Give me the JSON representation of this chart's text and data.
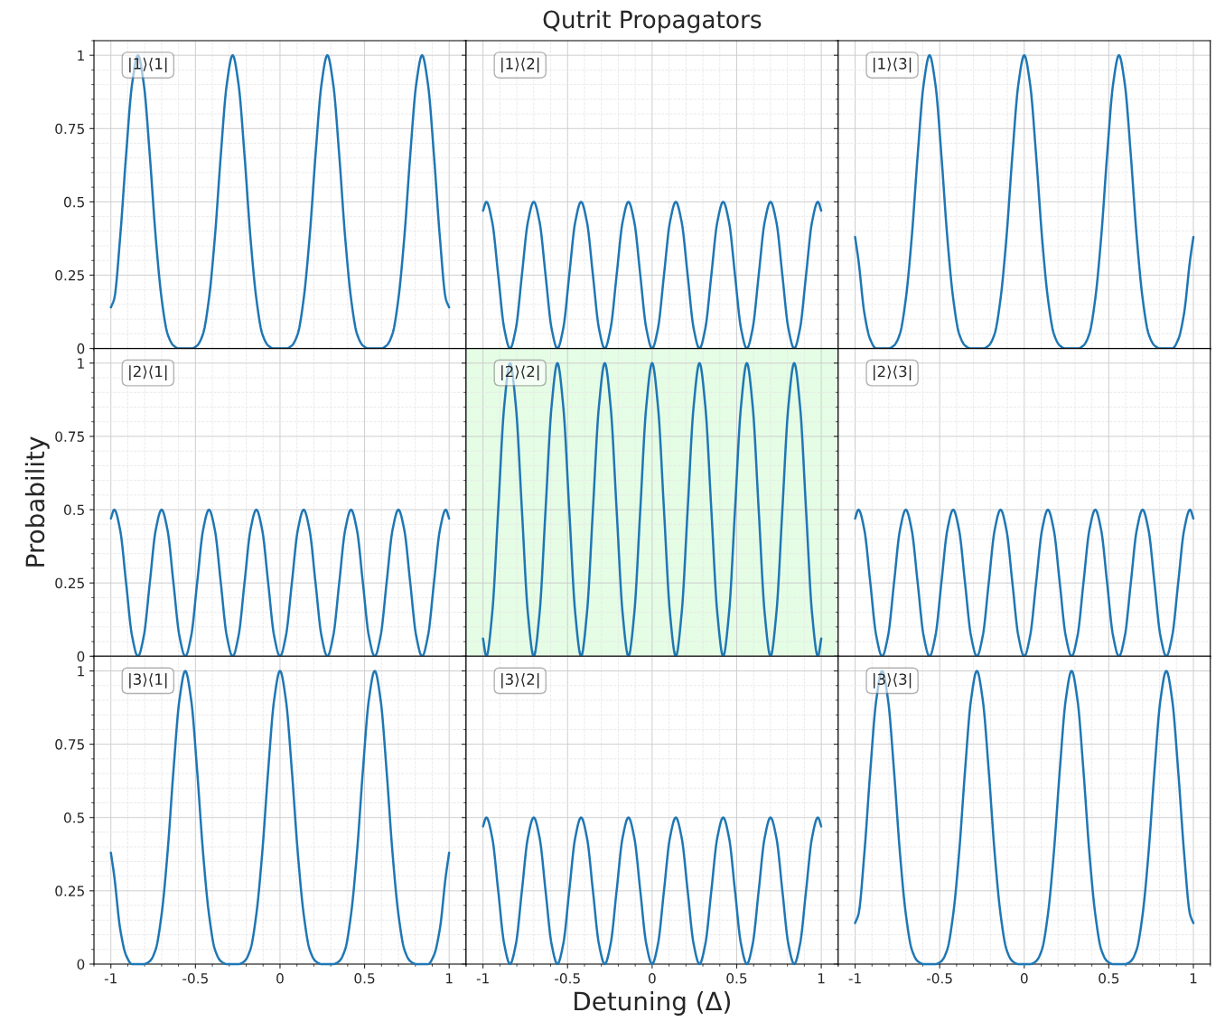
{
  "chart_data": [
    {
      "type": "line",
      "annotations": [
        "|1⟩⟨1|"
      ],
      "xlim": [
        -1.1,
        1.1
      ],
      "ylim": [
        0,
        1.05
      ],
      "xticks": [
        -1,
        -0.5,
        0,
        0.5,
        1
      ],
      "yticks": [
        0,
        0.25,
        0.5,
        0.75,
        1
      ],
      "grid": true,
      "tick_labels": "y",
      "x": [
        -1,
        -0.98,
        -0.945,
        -0.91,
        -0.875,
        -0.84,
        -0.805,
        -0.77,
        -0.735,
        -0.7,
        -0.665,
        -0.63,
        -0.595,
        -0.56,
        -0.525,
        -0.49,
        -0.455,
        -0.42,
        -0.385,
        -0.35,
        -0.315,
        -0.28,
        -0.245,
        -0.21,
        -0.175,
        -0.14,
        -0.105,
        -0.07,
        -0.035,
        0,
        0.035,
        0.07,
        0.105,
        0.14,
        0.175,
        0.21,
        0.245,
        0.28,
        0.315,
        0.35,
        0.385,
        0.42,
        0.455,
        0.49,
        0.525,
        0.56,
        0.595,
        0.63,
        0.665,
        0.7,
        0.735,
        0.77,
        0.805,
        0.84,
        0.875,
        0.91,
        0.945,
        0.98,
        1
      ],
      "series": [
        {
          "color": "#1f77b4",
          "values": [
            0.14,
            0.17,
            0.38,
            0.66,
            0.9,
            1,
            0.9,
            0.66,
            0.38,
            0.17,
            0.05,
            0.01,
            0,
            0,
            0,
            0.01,
            0.05,
            0.17,
            0.38,
            0.66,
            0.9,
            1,
            0.9,
            0.66,
            0.38,
            0.17,
            0.05,
            0.01,
            0,
            0,
            0,
            0.01,
            0.05,
            0.17,
            0.38,
            0.66,
            0.9,
            1,
            0.9,
            0.66,
            0.38,
            0.17,
            0.05,
            0.01,
            0,
            0,
            0,
            0.01,
            0.05,
            0.17,
            0.38,
            0.66,
            0.9,
            1,
            0.9,
            0.66,
            0.38,
            0.17,
            0.14
          ]
        }
      ]
    },
    {
      "type": "line",
      "title": "Qutrit Propagators",
      "annotations": [
        "|1⟩⟨2|"
      ],
      "xlim": [
        -1.1,
        1.1
      ],
      "ylim": [
        0,
        1.05
      ],
      "xticks": [
        -1,
        -0.5,
        0,
        0.5,
        1
      ],
      "yticks": [
        0,
        0.25,
        0.5,
        0.75,
        1
      ],
      "grid": true,
      "tick_labels": false,
      "x": [
        -1,
        -0.98,
        -0.945,
        -0.91,
        -0.875,
        -0.84,
        -0.805,
        -0.77,
        -0.735,
        -0.7,
        -0.665,
        -0.63,
        -0.595,
        -0.56,
        -0.525,
        -0.49,
        -0.455,
        -0.42,
        -0.385,
        -0.35,
        -0.315,
        -0.28,
        -0.245,
        -0.21,
        -0.175,
        -0.14,
        -0.105,
        -0.07,
        -0.035,
        0,
        0.035,
        0.07,
        0.105,
        0.14,
        0.175,
        0.21,
        0.245,
        0.28,
        0.315,
        0.35,
        0.385,
        0.42,
        0.455,
        0.49,
        0.525,
        0.56,
        0.595,
        0.63,
        0.665,
        0.7,
        0.735,
        0.77,
        0.805,
        0.84,
        0.875,
        0.91,
        0.945,
        0.98,
        1
      ],
      "series": [
        {
          "color": "#1f77b4",
          "values": [
            0.47,
            0.5,
            0.43,
            0.25,
            0.07,
            0,
            0.07,
            0.25,
            0.43,
            0.5,
            0.43,
            0.25,
            0.07,
            0,
            0.07,
            0.25,
            0.43,
            0.5,
            0.43,
            0.25,
            0.07,
            0,
            0.07,
            0.25,
            0.43,
            0.5,
            0.43,
            0.25,
            0.07,
            0,
            0.07,
            0.25,
            0.43,
            0.5,
            0.43,
            0.25,
            0.07,
            0,
            0.07,
            0.25,
            0.43,
            0.5,
            0.43,
            0.25,
            0.07,
            0,
            0.07,
            0.25,
            0.43,
            0.5,
            0.43,
            0.25,
            0.07,
            0,
            0.07,
            0.25,
            0.43,
            0.5,
            0.47
          ]
        }
      ]
    },
    {
      "type": "line",
      "annotations": [
        "|1⟩⟨3|"
      ],
      "xlim": [
        -1.1,
        1.1
      ],
      "ylim": [
        0,
        1.05
      ],
      "xticks": [
        -1,
        -0.5,
        0,
        0.5,
        1
      ],
      "yticks": [
        0,
        0.25,
        0.5,
        0.75,
        1
      ],
      "grid": true,
      "tick_labels": false,
      "x": [
        -1,
        -0.98,
        -0.945,
        -0.91,
        -0.875,
        -0.84,
        -0.805,
        -0.77,
        -0.735,
        -0.7,
        -0.665,
        -0.63,
        -0.595,
        -0.56,
        -0.525,
        -0.49,
        -0.455,
        -0.42,
        -0.385,
        -0.35,
        -0.315,
        -0.28,
        -0.245,
        -0.21,
        -0.175,
        -0.14,
        -0.105,
        -0.07,
        -0.035,
        0,
        0.035,
        0.07,
        0.105,
        0.14,
        0.175,
        0.21,
        0.245,
        0.28,
        0.315,
        0.35,
        0.385,
        0.42,
        0.455,
        0.49,
        0.525,
        0.56,
        0.595,
        0.63,
        0.665,
        0.7,
        0.735,
        0.77,
        0.805,
        0.84,
        0.875,
        0.91,
        0.945,
        0.98,
        1
      ],
      "series": [
        {
          "color": "#1f77b4",
          "values": [
            0.38,
            0.3,
            0.12,
            0.03,
            0,
            0,
            0,
            0.01,
            0.05,
            0.17,
            0.38,
            0.66,
            0.9,
            1,
            0.9,
            0.66,
            0.38,
            0.17,
            0.05,
            0.01,
            0,
            0,
            0,
            0.01,
            0.05,
            0.17,
            0.38,
            0.66,
            0.9,
            1,
            0.9,
            0.66,
            0.38,
            0.17,
            0.05,
            0.01,
            0,
            0,
            0,
            0.01,
            0.05,
            0.17,
            0.38,
            0.66,
            0.9,
            1,
            0.9,
            0.66,
            0.38,
            0.17,
            0.05,
            0.01,
            0,
            0,
            0,
            0.03,
            0.12,
            0.3,
            0.38
          ]
        }
      ]
    },
    {
      "type": "line",
      "ylabel": "Probability",
      "annotations": [
        "|2⟩⟨1|"
      ],
      "xlim": [
        -1.1,
        1.1
      ],
      "ylim": [
        0,
        1.05
      ],
      "xticks": [
        -1,
        -0.5,
        0,
        0.5,
        1
      ],
      "yticks": [
        0,
        0.25,
        0.5,
        0.75,
        1
      ],
      "grid": true,
      "tick_labels": "y",
      "x": [
        -1,
        -0.98,
        -0.945,
        -0.91,
        -0.875,
        -0.84,
        -0.805,
        -0.77,
        -0.735,
        -0.7,
        -0.665,
        -0.63,
        -0.595,
        -0.56,
        -0.525,
        -0.49,
        -0.455,
        -0.42,
        -0.385,
        -0.35,
        -0.315,
        -0.28,
        -0.245,
        -0.21,
        -0.175,
        -0.14,
        -0.105,
        -0.07,
        -0.035,
        0,
        0.035,
        0.07,
        0.105,
        0.14,
        0.175,
        0.21,
        0.245,
        0.28,
        0.315,
        0.35,
        0.385,
        0.42,
        0.455,
        0.49,
        0.525,
        0.56,
        0.595,
        0.63,
        0.665,
        0.7,
        0.735,
        0.77,
        0.805,
        0.84,
        0.875,
        0.91,
        0.945,
        0.98,
        1
      ],
      "series": [
        {
          "color": "#1f77b4",
          "values": [
            0.47,
            0.5,
            0.43,
            0.25,
            0.07,
            0,
            0.07,
            0.25,
            0.43,
            0.5,
            0.43,
            0.25,
            0.07,
            0,
            0.07,
            0.25,
            0.43,
            0.5,
            0.43,
            0.25,
            0.07,
            0,
            0.07,
            0.25,
            0.43,
            0.5,
            0.43,
            0.25,
            0.07,
            0,
            0.07,
            0.25,
            0.43,
            0.5,
            0.43,
            0.25,
            0.07,
            0,
            0.07,
            0.25,
            0.43,
            0.5,
            0.43,
            0.25,
            0.07,
            0,
            0.07,
            0.25,
            0.43,
            0.5,
            0.43,
            0.25,
            0.07,
            0,
            0.07,
            0.25,
            0.43,
            0.5,
            0.47
          ]
        }
      ]
    },
    {
      "type": "line",
      "annotations": [
        "|2⟩⟨2|"
      ],
      "bands": [
        {
          "axis": "y",
          "from": 0,
          "to": 1.05,
          "color": "#e5fde5"
        }
      ],
      "xlim": [
        -1.1,
        1.1
      ],
      "ylim": [
        0,
        1.05
      ],
      "xticks": [
        -1,
        -0.5,
        0,
        0.5,
        1
      ],
      "yticks": [
        0,
        0.25,
        0.5,
        0.75,
        1
      ],
      "grid": true,
      "tick_labels": false,
      "x": [
        -1,
        -0.98,
        -0.945,
        -0.91,
        -0.875,
        -0.84,
        -0.805,
        -0.77,
        -0.735,
        -0.7,
        -0.665,
        -0.63,
        -0.595,
        -0.56,
        -0.525,
        -0.49,
        -0.455,
        -0.42,
        -0.385,
        -0.35,
        -0.315,
        -0.28,
        -0.245,
        -0.21,
        -0.175,
        -0.14,
        -0.105,
        -0.07,
        -0.035,
        0,
        0.035,
        0.07,
        0.105,
        0.14,
        0.175,
        0.21,
        0.245,
        0.28,
        0.315,
        0.35,
        0.385,
        0.42,
        0.455,
        0.49,
        0.525,
        0.56,
        0.595,
        0.63,
        0.665,
        0.7,
        0.735,
        0.77,
        0.805,
        0.84,
        0.875,
        0.91,
        0.945,
        0.98,
        1
      ],
      "series": [
        {
          "color": "#1f77b4",
          "values": [
            0.06,
            0,
            0.15,
            0.5,
            0.85,
            1,
            0.85,
            0.5,
            0.15,
            0,
            0.15,
            0.5,
            0.85,
            1,
            0.85,
            0.5,
            0.15,
            0,
            0.15,
            0.5,
            0.85,
            1,
            0.85,
            0.5,
            0.15,
            0,
            0.15,
            0.5,
            0.85,
            1,
            0.85,
            0.5,
            0.15,
            0,
            0.15,
            0.5,
            0.85,
            1,
            0.85,
            0.5,
            0.15,
            0,
            0.15,
            0.5,
            0.85,
            1,
            0.85,
            0.5,
            0.15,
            0,
            0.15,
            0.5,
            0.85,
            1,
            0.85,
            0.5,
            0.15,
            0,
            0.06
          ]
        }
      ]
    },
    {
      "type": "line",
      "annotations": [
        "|2⟩⟨3|"
      ],
      "xlim": [
        -1.1,
        1.1
      ],
      "ylim": [
        0,
        1.05
      ],
      "xticks": [
        -1,
        -0.5,
        0,
        0.5,
        1
      ],
      "yticks": [
        0,
        0.25,
        0.5,
        0.75,
        1
      ],
      "grid": true,
      "tick_labels": false,
      "x": [
        -1,
        -0.98,
        -0.945,
        -0.91,
        -0.875,
        -0.84,
        -0.805,
        -0.77,
        -0.735,
        -0.7,
        -0.665,
        -0.63,
        -0.595,
        -0.56,
        -0.525,
        -0.49,
        -0.455,
        -0.42,
        -0.385,
        -0.35,
        -0.315,
        -0.28,
        -0.245,
        -0.21,
        -0.175,
        -0.14,
        -0.105,
        -0.07,
        -0.035,
        0,
        0.035,
        0.07,
        0.105,
        0.14,
        0.175,
        0.21,
        0.245,
        0.28,
        0.315,
        0.35,
        0.385,
        0.42,
        0.455,
        0.49,
        0.525,
        0.56,
        0.595,
        0.63,
        0.665,
        0.7,
        0.735,
        0.77,
        0.805,
        0.84,
        0.875,
        0.91,
        0.945,
        0.98,
        1
      ],
      "series": [
        {
          "color": "#1f77b4",
          "values": [
            0.47,
            0.5,
            0.43,
            0.25,
            0.07,
            0,
            0.07,
            0.25,
            0.43,
            0.5,
            0.43,
            0.25,
            0.07,
            0,
            0.07,
            0.25,
            0.43,
            0.5,
            0.43,
            0.25,
            0.07,
            0,
            0.07,
            0.25,
            0.43,
            0.5,
            0.43,
            0.25,
            0.07,
            0,
            0.07,
            0.25,
            0.43,
            0.5,
            0.43,
            0.25,
            0.07,
            0,
            0.07,
            0.25,
            0.43,
            0.5,
            0.43,
            0.25,
            0.07,
            0,
            0.07,
            0.25,
            0.43,
            0.5,
            0.43,
            0.25,
            0.07,
            0,
            0.07,
            0.25,
            0.43,
            0.5,
            0.47
          ]
        }
      ]
    },
    {
      "type": "line",
      "annotations": [
        "|3⟩⟨1|"
      ],
      "xlim": [
        -1.1,
        1.1
      ],
      "ylim": [
        0,
        1.05
      ],
      "xticks": [
        -1,
        -0.5,
        0,
        0.5,
        1
      ],
      "yticks": [
        0,
        0.25,
        0.5,
        0.75,
        1
      ],
      "grid": true,
      "x": [
        -1,
        -0.98,
        -0.945,
        -0.91,
        -0.875,
        -0.84,
        -0.805,
        -0.77,
        -0.735,
        -0.7,
        -0.665,
        -0.63,
        -0.595,
        -0.56,
        -0.525,
        -0.49,
        -0.455,
        -0.42,
        -0.385,
        -0.35,
        -0.315,
        -0.28,
        -0.245,
        -0.21,
        -0.175,
        -0.14,
        -0.105,
        -0.07,
        -0.035,
        0,
        0.035,
        0.07,
        0.105,
        0.14,
        0.175,
        0.21,
        0.245,
        0.28,
        0.315,
        0.35,
        0.385,
        0.42,
        0.455,
        0.49,
        0.525,
        0.56,
        0.595,
        0.63,
        0.665,
        0.7,
        0.735,
        0.77,
        0.805,
        0.84,
        0.875,
        0.91,
        0.945,
        0.98,
        1
      ],
      "series": [
        {
          "color": "#1f77b4",
          "values": [
            0.38,
            0.3,
            0.12,
            0.03,
            0,
            0,
            0,
            0.01,
            0.05,
            0.17,
            0.38,
            0.66,
            0.9,
            1,
            0.9,
            0.66,
            0.38,
            0.17,
            0.05,
            0.01,
            0,
            0,
            0,
            0.01,
            0.05,
            0.17,
            0.38,
            0.66,
            0.9,
            1,
            0.9,
            0.66,
            0.38,
            0.17,
            0.05,
            0.01,
            0,
            0,
            0,
            0.01,
            0.05,
            0.17,
            0.38,
            0.66,
            0.9,
            1,
            0.9,
            0.66,
            0.38,
            0.17,
            0.05,
            0.01,
            0,
            0,
            0,
            0.03,
            0.12,
            0.3,
            0.38
          ]
        }
      ]
    },
    {
      "type": "line",
      "xlabel": "Detuning (Δ)",
      "annotations": [
        "|3⟩⟨2|"
      ],
      "xlim": [
        -1.1,
        1.1
      ],
      "ylim": [
        0,
        1.05
      ],
      "xticks": [
        -1,
        -0.5,
        0,
        0.5,
        1
      ],
      "yticks": [
        0,
        0.25,
        0.5,
        0.75,
        1
      ],
      "grid": true,
      "tick_labels": "x",
      "x": [
        -1,
        -0.98,
        -0.945,
        -0.91,
        -0.875,
        -0.84,
        -0.805,
        -0.77,
        -0.735,
        -0.7,
        -0.665,
        -0.63,
        -0.595,
        -0.56,
        -0.525,
        -0.49,
        -0.455,
        -0.42,
        -0.385,
        -0.35,
        -0.315,
        -0.28,
        -0.245,
        -0.21,
        -0.175,
        -0.14,
        -0.105,
        -0.07,
        -0.035,
        0,
        0.035,
        0.07,
        0.105,
        0.14,
        0.175,
        0.21,
        0.245,
        0.28,
        0.315,
        0.35,
        0.385,
        0.42,
        0.455,
        0.49,
        0.525,
        0.56,
        0.595,
        0.63,
        0.665,
        0.7,
        0.735,
        0.77,
        0.805,
        0.84,
        0.875,
        0.91,
        0.945,
        0.98,
        1
      ],
      "series": [
        {
          "color": "#1f77b4",
          "values": [
            0.47,
            0.5,
            0.43,
            0.25,
            0.07,
            0,
            0.07,
            0.25,
            0.43,
            0.5,
            0.43,
            0.25,
            0.07,
            0,
            0.07,
            0.25,
            0.43,
            0.5,
            0.43,
            0.25,
            0.07,
            0,
            0.07,
            0.25,
            0.43,
            0.5,
            0.43,
            0.25,
            0.07,
            0,
            0.07,
            0.25,
            0.43,
            0.5,
            0.43,
            0.25,
            0.07,
            0,
            0.07,
            0.25,
            0.43,
            0.5,
            0.43,
            0.25,
            0.07,
            0,
            0.07,
            0.25,
            0.43,
            0.5,
            0.43,
            0.25,
            0.07,
            0,
            0.07,
            0.25,
            0.43,
            0.5,
            0.47
          ]
        }
      ]
    },
    {
      "type": "line",
      "annotations": [
        "|3⟩⟨3|"
      ],
      "xlim": [
        -1.1,
        1.1
      ],
      "ylim": [
        0,
        1.05
      ],
      "xticks": [
        -1,
        -0.5,
        0,
        0.5,
        1
      ],
      "yticks": [
        0,
        0.25,
        0.5,
        0.75,
        1
      ],
      "grid": true,
      "tick_labels": "x",
      "x": [
        -1,
        -0.98,
        -0.945,
        -0.91,
        -0.875,
        -0.84,
        -0.805,
        -0.77,
        -0.735,
        -0.7,
        -0.665,
        -0.63,
        -0.595,
        -0.56,
        -0.525,
        -0.49,
        -0.455,
        -0.42,
        -0.385,
        -0.35,
        -0.315,
        -0.28,
        -0.245,
        -0.21,
        -0.175,
        -0.14,
        -0.105,
        -0.07,
        -0.035,
        0,
        0.035,
        0.07,
        0.105,
        0.14,
        0.175,
        0.21,
        0.245,
        0.28,
        0.315,
        0.35,
        0.385,
        0.42,
        0.455,
        0.49,
        0.525,
        0.56,
        0.595,
        0.63,
        0.665,
        0.7,
        0.735,
        0.77,
        0.805,
        0.84,
        0.875,
        0.91,
        0.945,
        0.98,
        1
      ],
      "series": [
        {
          "color": "#1f77b4",
          "values": [
            0.14,
            0.17,
            0.38,
            0.66,
            0.9,
            1,
            0.9,
            0.66,
            0.38,
            0.17,
            0.05,
            0.01,
            0,
            0,
            0,
            0.01,
            0.05,
            0.17,
            0.38,
            0.66,
            0.9,
            1,
            0.9,
            0.66,
            0.38,
            0.17,
            0.05,
            0.01,
            0,
            0,
            0,
            0.01,
            0.05,
            0.17,
            0.38,
            0.66,
            0.9,
            1,
            0.9,
            0.66,
            0.38,
            0.17,
            0.05,
            0.01,
            0,
            0,
            0,
            0.01,
            0.05,
            0.17,
            0.38,
            0.66,
            0.9,
            1,
            0.9,
            0.66,
            0.38,
            0.17,
            0.14
          ]
        }
      ]
    }
  ]
}
